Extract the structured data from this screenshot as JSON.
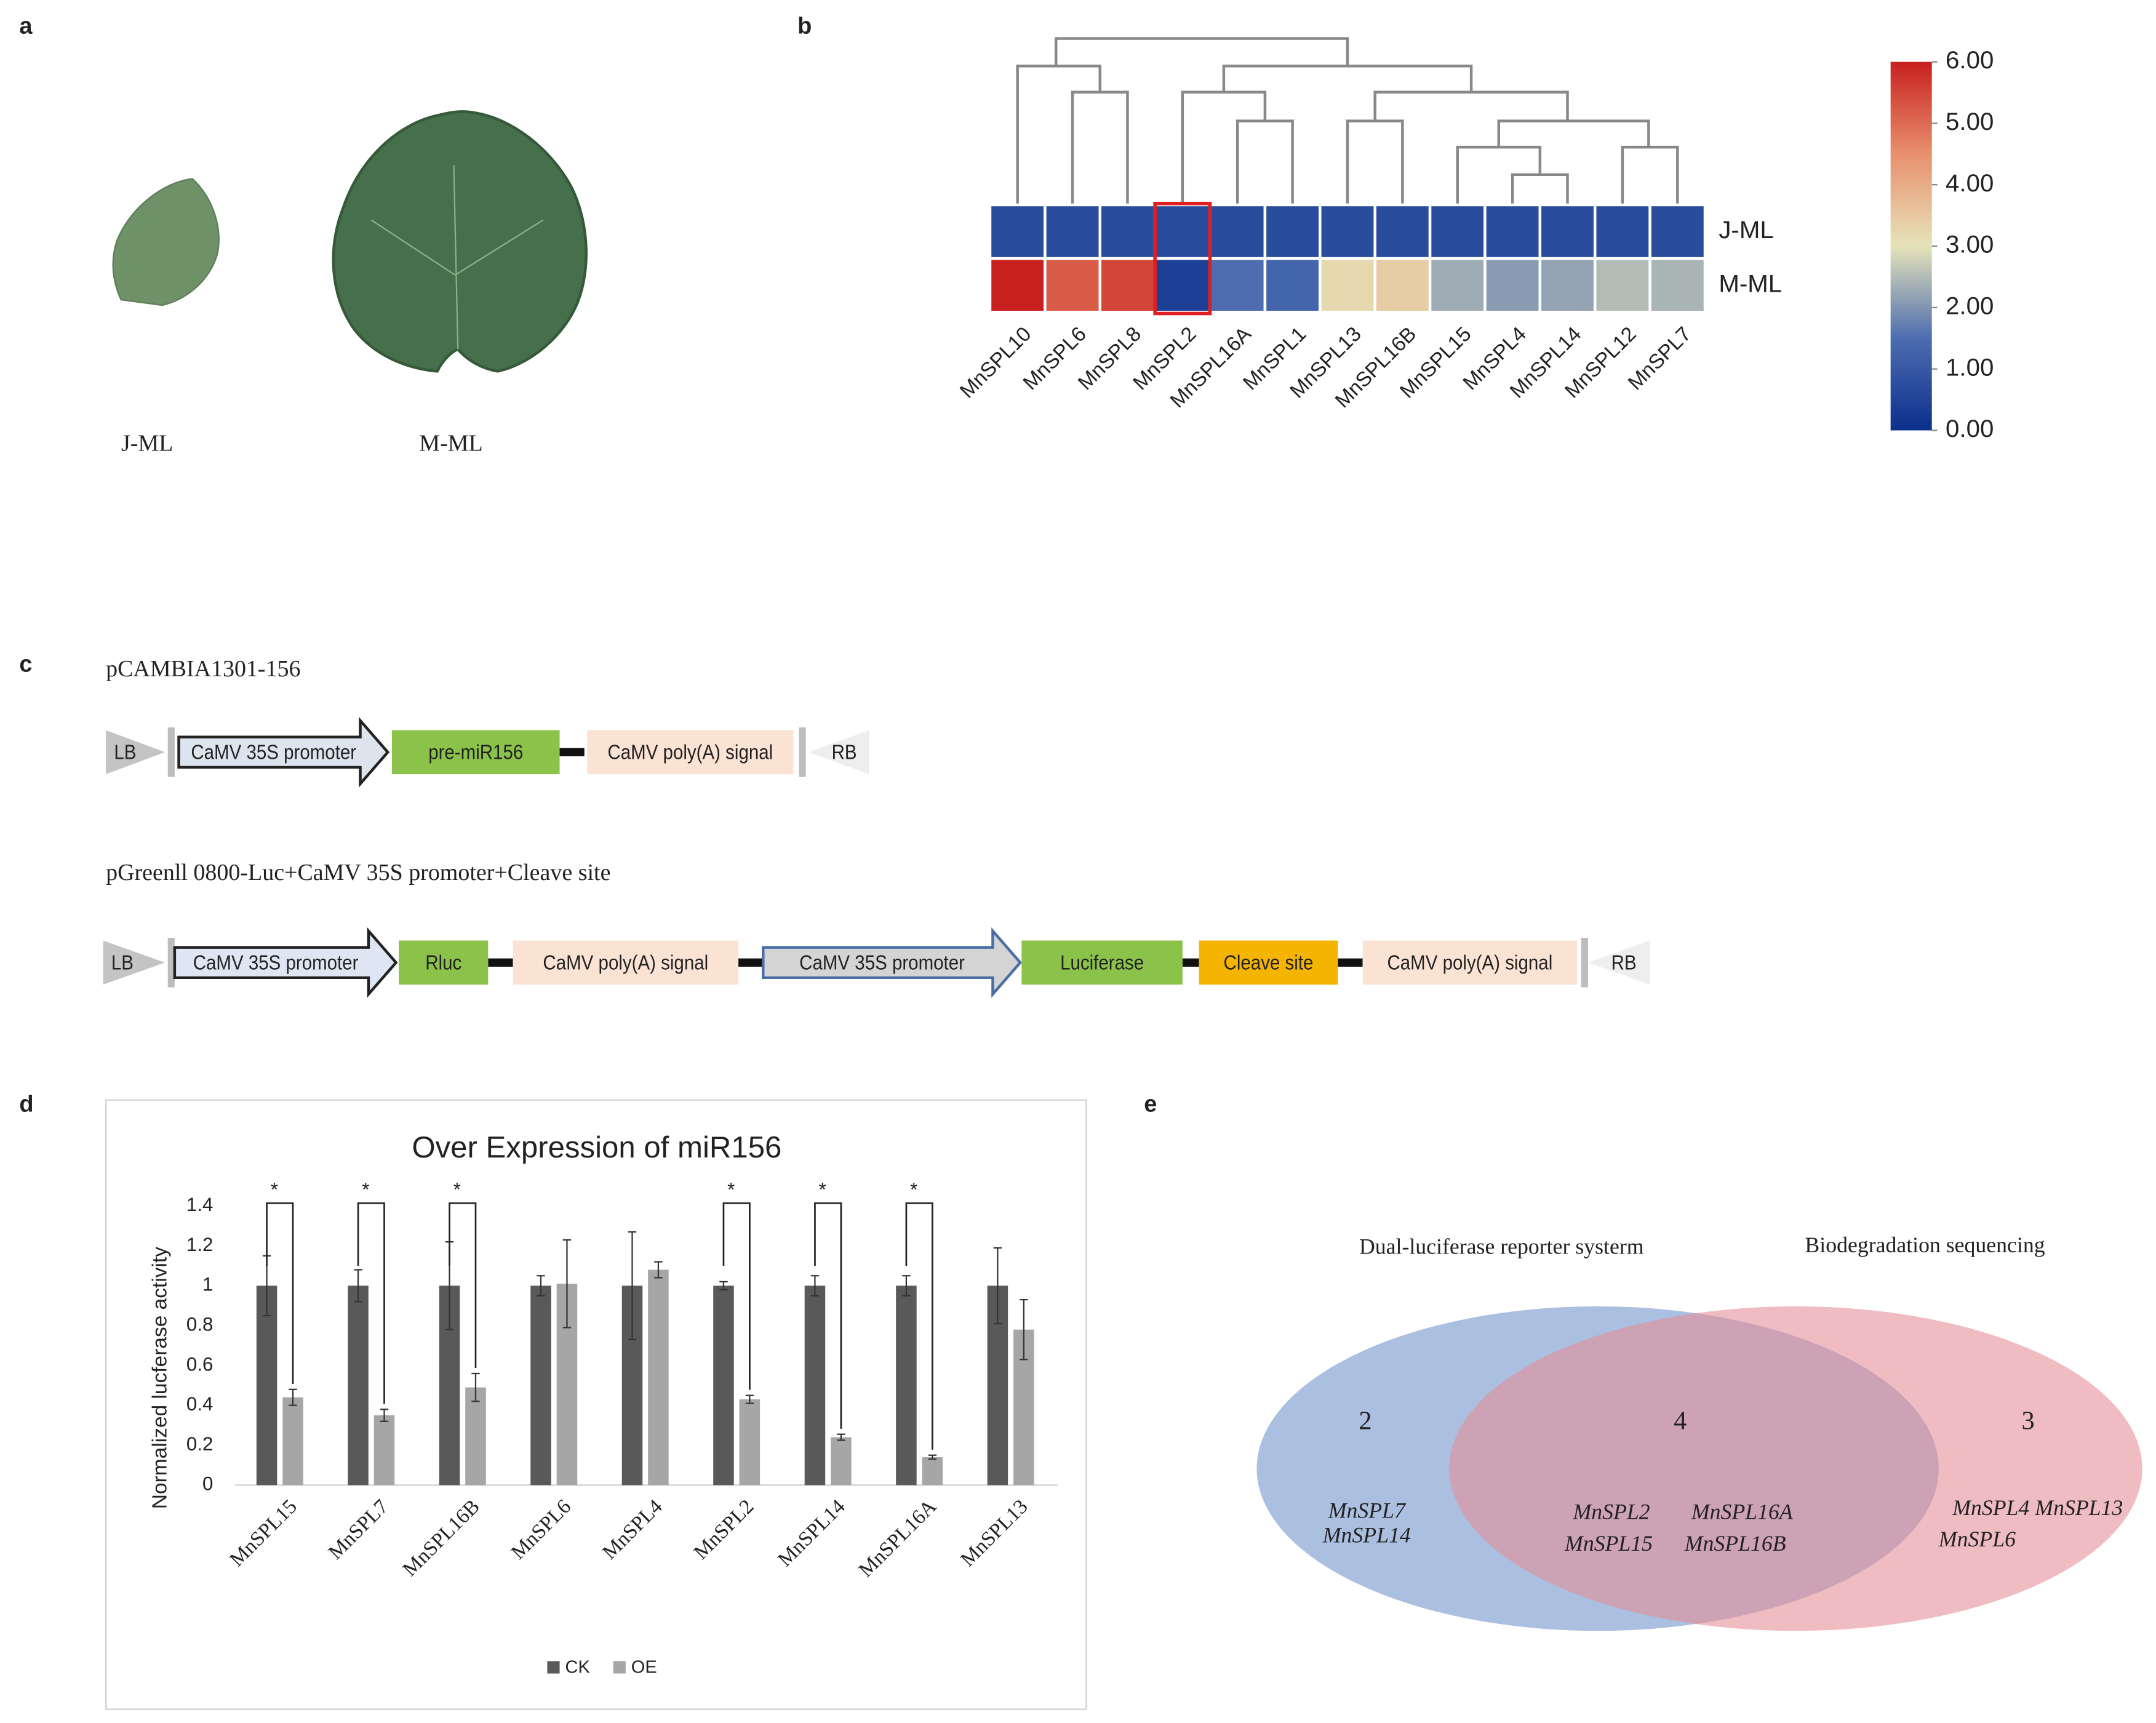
{
  "panel_labels": [
    "a",
    "b",
    "c",
    "d",
    "e"
  ],
  "leaves": {
    "labels": [
      "J-ML",
      "M-ML"
    ]
  },
  "chart_data": [
    {
      "type": "heatmap",
      "categories": [
        "MnSPL10",
        "MnSPL6",
        "MnSPL8",
        "MnSPL2",
        "MnSPL16A",
        "MnSPL1",
        "MnSPL13",
        "MnSPL16B",
        "MnSPL15",
        "MnSPL4",
        "MnSPL14",
        "MnSPL12",
        "MnSPL7"
      ],
      "rows": [
        "J-ML",
        "M-ML"
      ],
      "values": [
        [
          0.7,
          0.7,
          0.7,
          0.7,
          0.7,
          0.7,
          0.7,
          0.7,
          0.7,
          0.7,
          0.7,
          0.7,
          0.7
        ],
        [
          6.0,
          5.2,
          5.5,
          0.4,
          1.5,
          1.3,
          3.2,
          3.4,
          2.3,
          2.1,
          2.2,
          2.5,
          2.4
        ]
      ],
      "zlim": [
        0,
        6
      ],
      "zticks": [
        {
          "value": 0,
          "label": "0.00"
        },
        {
          "value": 1,
          "label": "1.00"
        },
        {
          "value": 2,
          "label": "2.00"
        },
        {
          "value": 3,
          "label": "3.00"
        },
        {
          "value": 4,
          "label": "4.00"
        },
        {
          "value": 5,
          "label": "5.00"
        },
        {
          "value": 6,
          "label": "6.00"
        }
      ],
      "colorscale": [
        [
          0,
          "#0b2f8c"
        ],
        [
          1.5,
          "#4d6db0"
        ],
        [
          3,
          "#e6e3b9"
        ],
        [
          4.5,
          "#e8906e"
        ],
        [
          6,
          "#c8201f"
        ]
      ],
      "highlight": "MnSPL2",
      "highlight_color": "#e02020"
    },
    {
      "type": "bar",
      "title": "Over Expression of miR156",
      "ylabel": "Normalized lucferase activity",
      "categories": [
        "MnSPL15",
        "MnSPL7",
        "MnSPL16B",
        "MnSPL6",
        "MnSPL4",
        "MnSPL2",
        "MnSPL14",
        "MnSPL16A",
        "MnSPL13"
      ],
      "series": [
        {
          "name": "CK",
          "color": "#595959",
          "values": [
            1,
            1,
            1,
            1,
            1,
            1,
            1,
            1,
            1
          ],
          "errors": [
            0.15,
            0.08,
            0.22,
            0.05,
            0.27,
            0.02,
            0.05,
            0.05,
            0.19
          ]
        },
        {
          "name": "OE",
          "color": "#a6a6a6",
          "values": [
            0.44,
            0.35,
            0.49,
            1.01,
            1.08,
            0.43,
            0.24,
            0.14,
            0.78
          ],
          "errors": [
            0.04,
            0.03,
            0.07,
            0.22,
            0.04,
            0.02,
            0.015,
            0.01,
            0.15
          ]
        }
      ],
      "annotations": [
        "*",
        "*",
        "*",
        null,
        null,
        "*",
        "*",
        "*",
        null
      ],
      "ylim": [
        0,
        1.4
      ],
      "yticks": [
        0,
        0.2,
        0.4,
        0.6,
        0.8,
        1,
        1.2,
        1.4
      ],
      "grid": false,
      "legend": "bottom"
    }
  ],
  "constructs": [
    {
      "title": "pCAMBIA1301-156",
      "elements": [
        "LB",
        "CaMV 35S promoter",
        "pre-miR156",
        "CaMV poly(A) signal",
        "RB"
      ]
    },
    {
      "title": "pGreenll 0800-Luc+CaMV 35S promoter+Cleave site",
      "elements": [
        "LB",
        "CaMV 35S promoter",
        "Rluc",
        "CaMV poly(A) signal",
        "CaMV 35S promoter",
        "Luciferase",
        "Cleave site",
        "CaMV poly(A) signal",
        "RB"
      ]
    }
  ],
  "venn": {
    "sets": [
      "Dual-luciferase reporter systerm",
      "Biodegradation sequencing"
    ],
    "regions": [
      {
        "count": 2,
        "genes": [
          "MnSPL7",
          "MnSPL14"
        ]
      },
      {
        "count": 4,
        "genes": [
          "MnSPL2",
          "MnSPL16A",
          "MnSPL15",
          "MnSPL16B"
        ]
      },
      {
        "count": 3,
        "genes": [
          "MnSPL4 MnSPL13",
          "MnSPL6"
        ]
      }
    ]
  }
}
